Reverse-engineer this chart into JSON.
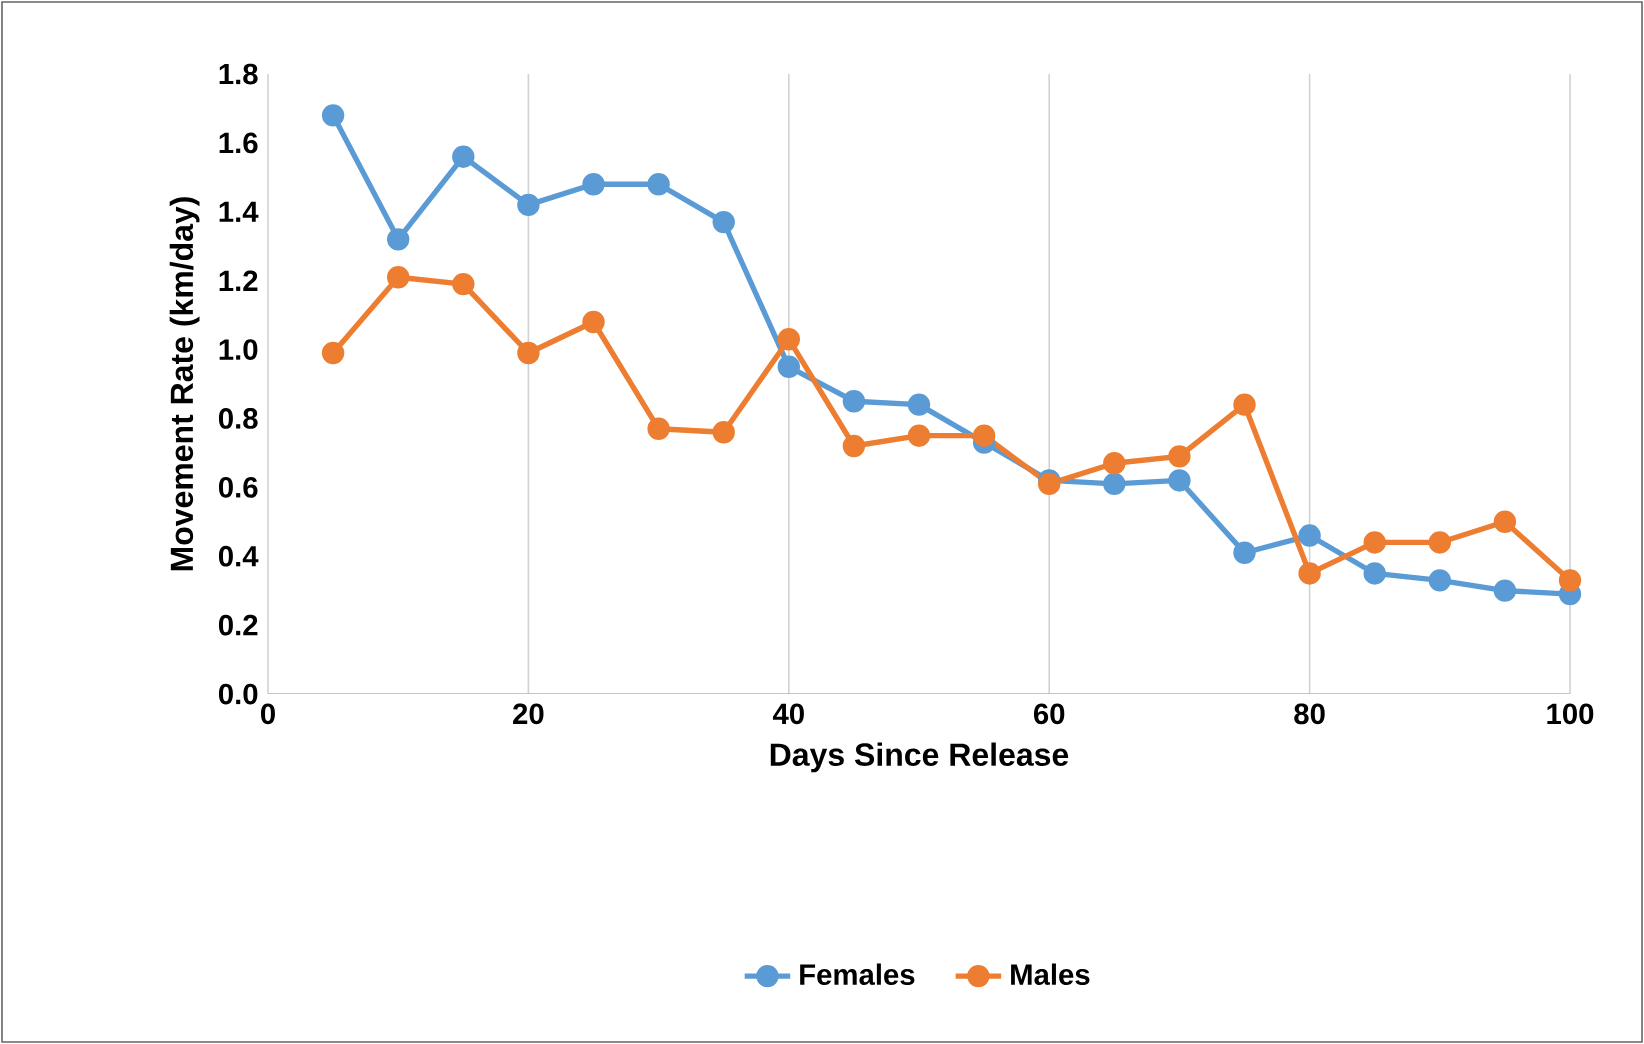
{
  "chart_data": {
    "type": "line",
    "xlabel": "Days Since Release",
    "ylabel": "Movement Rate (km/day)",
    "x": [
      5,
      10,
      15,
      20,
      25,
      30,
      35,
      40,
      45,
      50,
      55,
      60,
      65,
      70,
      75,
      80,
      85,
      90,
      95,
      100
    ],
    "series": [
      {
        "name": "Females",
        "color": "#5b9bd5",
        "values": [
          1.68,
          1.32,
          1.56,
          1.42,
          1.48,
          1.48,
          1.37,
          0.95,
          0.85,
          0.84,
          0.73,
          0.62,
          0.61,
          0.62,
          0.41,
          0.46,
          0.35,
          0.33,
          0.3,
          0.29
        ]
      },
      {
        "name": "Males",
        "color": "#ed7d31",
        "values": [
          0.99,
          1.21,
          1.19,
          0.99,
          1.08,
          0.77,
          0.76,
          1.03,
          0.72,
          0.75,
          0.75,
          0.61,
          0.67,
          0.69,
          0.84,
          0.35,
          0.44,
          0.44,
          0.5,
          0.33
        ]
      }
    ],
    "xlim": [
      0,
      100
    ],
    "xticks": [
      0,
      20,
      40,
      60,
      80,
      100
    ],
    "ylim": [
      0,
      1.8
    ],
    "yticks": [
      {
        "value": 0,
        "label": "0.0"
      },
      0.2,
      0.4,
      0.6,
      0.8,
      {
        "value": 1,
        "label": "1.0"
      },
      1.2,
      1.4,
      1.6,
      1.8
    ],
    "grid": "x",
    "legend": "bottom",
    "marker": "circle",
    "line_style": "solid"
  }
}
